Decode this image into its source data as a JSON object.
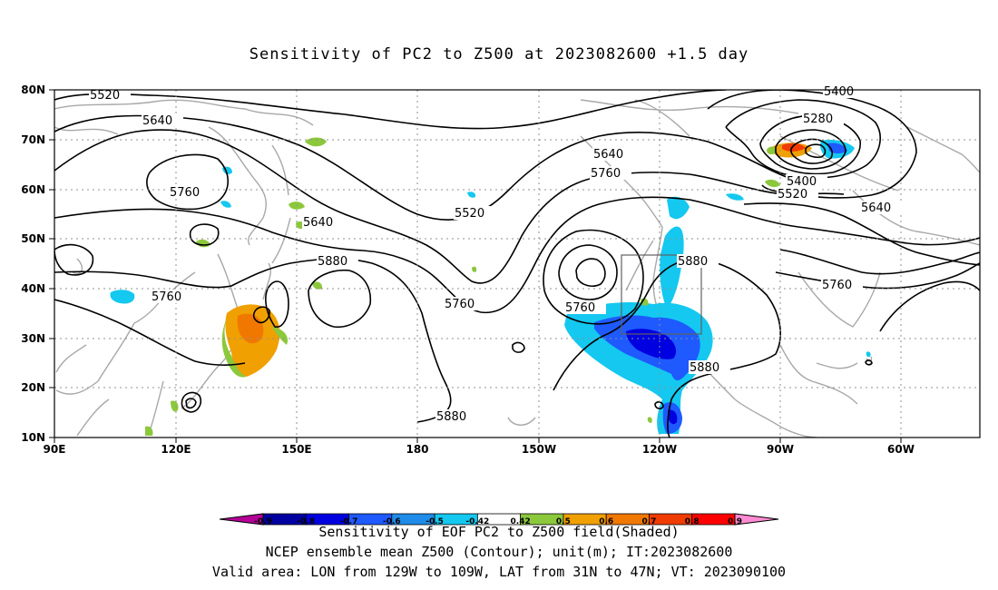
{
  "title": "Sensitivity of PC2 to Z500 at 2023082600 +1.5 day",
  "latitude_labels": [
    "80N",
    "70N",
    "60N",
    "50N",
    "40N",
    "30N",
    "20N",
    "10N"
  ],
  "longitude_labels": [
    "90E",
    "120E",
    "150E",
    "180",
    "150W",
    "120W",
    "90W",
    "60W"
  ],
  "contour_labels": {
    "c5520_a": "5520",
    "c5640_a": "5640",
    "c5760_a": "5760",
    "c5640_b": "5640",
    "c5760_b": "5760",
    "c5880_a": "5880",
    "c5880_b": "5880",
    "c5520_b": "5520",
    "c5760_c": "5760",
    "c5640_c": "5640",
    "c5760_d": "5760",
    "c5760_e": "5760",
    "c5400_a": "5400",
    "c5280": "5280",
    "c5400_b": "5400",
    "c5520_c": "5520",
    "c5640_d": "5640",
    "c5880_c": "5880",
    "c5880_d": "5880",
    "c5760_f": "5760"
  },
  "colorbar": {
    "levels": [
      "-0.9",
      "-0.8",
      "-0.7",
      "-0.6",
      "-0.5",
      "-0.42",
      "0.42",
      "0.5",
      "0.6",
      "0.7",
      "0.8",
      "0.9"
    ],
    "colors": [
      "#b40096",
      "#0000a0",
      "#0000e0",
      "#1e5aff",
      "#1e8ce8",
      "#14c8f0",
      "#ffffff",
      "#8cc83c",
      "#f0a000",
      "#f07800",
      "#f03c00",
      "#ff0000",
      "#ff8cd2"
    ]
  },
  "caption_line1": "Sensitivity of EOF PC2 to Z500 field(Shaded)",
  "caption_line2": "NCEP ensemble mean Z500 (Contour); unit(m); IT:2023082600",
  "caption_line3": "Valid area: LON from 129W to 109W, LAT from 31N to 47N; VT: 2023090100",
  "valid_area": {
    "lon": [
      "129W",
      "109W"
    ],
    "lat": [
      "31N",
      "47N"
    ]
  }
}
